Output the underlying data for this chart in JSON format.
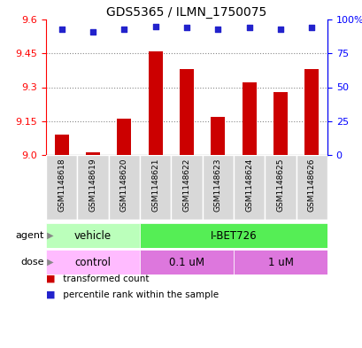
{
  "title": "GDS5365 / ILMN_1750075",
  "samples": [
    "GSM1148618",
    "GSM1148619",
    "GSM1148620",
    "GSM1148621",
    "GSM1148622",
    "GSM1148623",
    "GSM1148624",
    "GSM1148625",
    "GSM1148626"
  ],
  "bar_values": [
    9.09,
    9.01,
    9.16,
    9.46,
    9.38,
    9.17,
    9.32,
    9.28,
    9.38
  ],
  "percentile_values": [
    93,
    91,
    93,
    95,
    94,
    93,
    94,
    93,
    94
  ],
  "ylim_left": [
    9.0,
    9.6
  ],
  "yticks_left": [
    9.0,
    9.15,
    9.3,
    9.45,
    9.6
  ],
  "yticks_right": [
    0,
    25,
    50,
    75,
    100
  ],
  "bar_color": "#cc0000",
  "dot_color": "#2222cc",
  "agent_labels": [
    "vehicle",
    "I-BET726"
  ],
  "agent_color_vehicle": "#bbffbb",
  "agent_color_ibet": "#55ee55",
  "dose_labels": [
    "control",
    "0.1 uM",
    "1 uM"
  ],
  "dose_color_control": "#ffbbff",
  "dose_color_01um": "#dd77dd",
  "dose_color_1um": "#dd77dd",
  "grid_color": "#888888",
  "sample_bg_color": "#d8d8d8",
  "arrow_color": "#888888"
}
